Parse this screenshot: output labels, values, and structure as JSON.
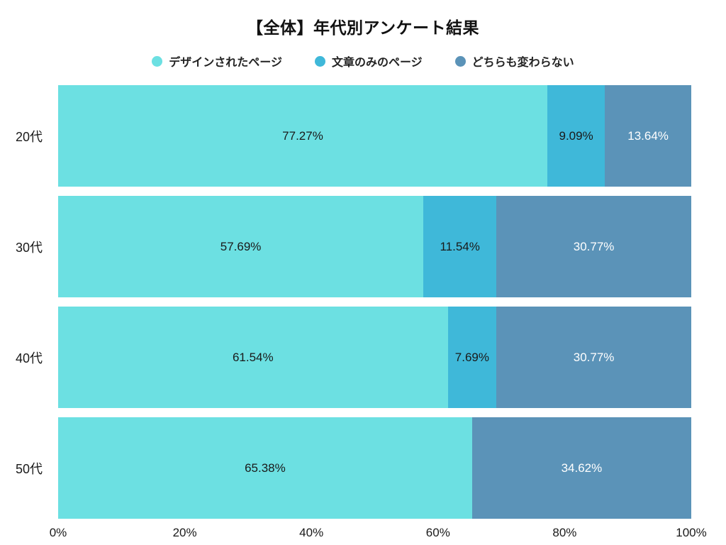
{
  "chart_data": {
    "type": "bar",
    "orientation": "horizontal",
    "stacked": true,
    "title": "【全体】年代別アンケート結果",
    "categories": [
      "20代",
      "30代",
      "40代",
      "50代"
    ],
    "series": [
      {
        "name": "デザインされたページ",
        "color": "#6ce0e2",
        "text_color": "#1a1a1a",
        "values": [
          77.27,
          57.69,
          61.54,
          65.38
        ]
      },
      {
        "name": "文章のみのページ",
        "color": "#3fb8d9",
        "text_color": "#1a1a1a",
        "values": [
          9.09,
          11.54,
          7.69,
          0
        ]
      },
      {
        "name": "どちらも変わらない",
        "color": "#5b93b8",
        "text_color": "#ffffff",
        "values": [
          13.64,
          30.77,
          30.77,
          34.62
        ]
      }
    ],
    "data_label_suffix": "%",
    "x_ticks": [
      "0%",
      "20%",
      "40%",
      "60%",
      "80%",
      "100%"
    ],
    "xlim": [
      0,
      100
    ],
    "legend_position": "top",
    "grid": false,
    "background_color": "#ffffff"
  }
}
